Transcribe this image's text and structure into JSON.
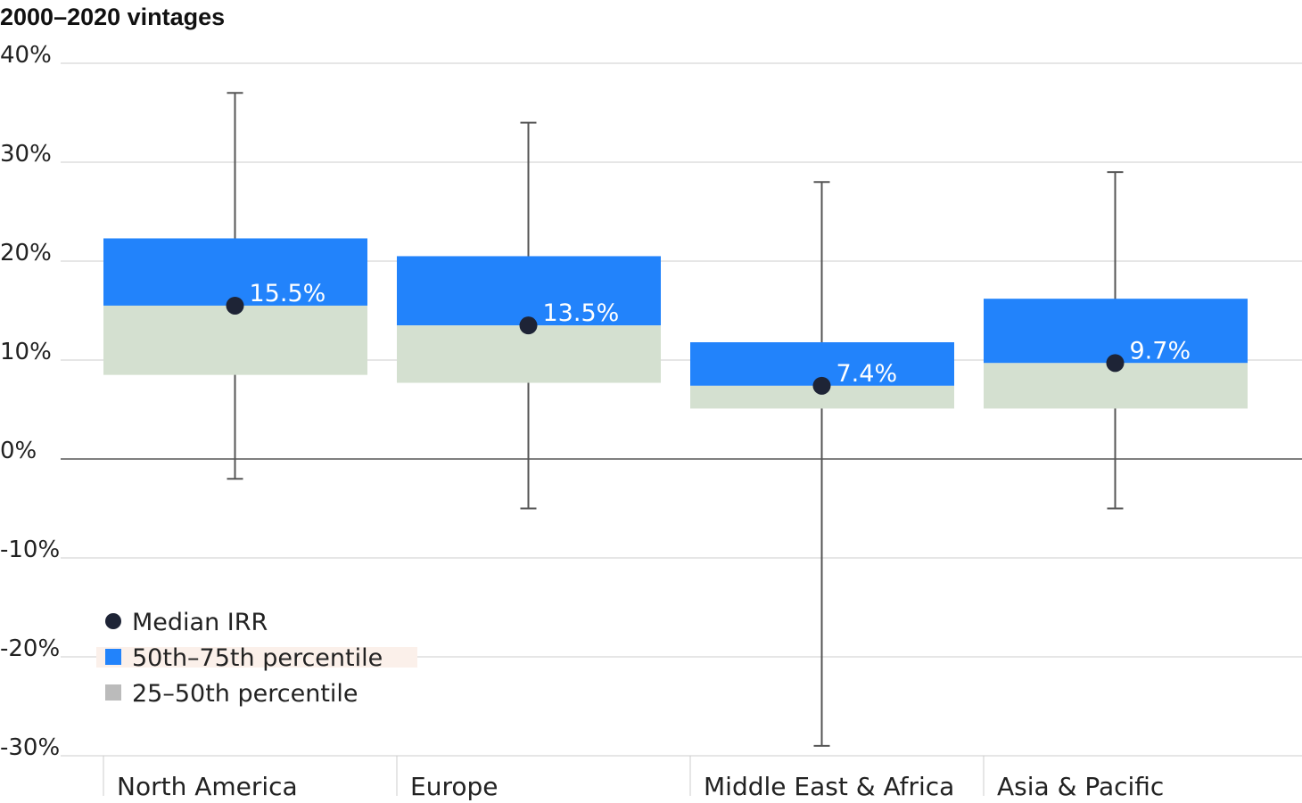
{
  "chart_data": {
    "type": "box",
    "title": "2000–2020 vintages",
    "xlabel": "",
    "ylabel": "",
    "ylim": [
      -30,
      40
    ],
    "yticks": [
      40,
      30,
      20,
      10,
      0,
      -10,
      -20,
      -30
    ],
    "ytick_labels": [
      "40%",
      "30%",
      "20%",
      "10%",
      "0%",
      "-10%",
      "-20%",
      "-30%"
    ],
    "grid": true,
    "categories": [
      "North America",
      "Europe",
      "Middle East & Africa",
      "Asia & Pacific"
    ],
    "whisker_low": [
      -2,
      -5,
      -29,
      -5
    ],
    "p25": [
      8.5,
      7.7,
      5.1,
      5.1
    ],
    "median": [
      15.5,
      13.5,
      7.4,
      9.7
    ],
    "p75": [
      22.3,
      20.5,
      11.8,
      16.2
    ],
    "whisker_high": [
      37,
      34,
      28,
      29
    ],
    "median_labels": [
      "15.5%",
      "13.5%",
      "7.4%",
      "9.7%"
    ],
    "legend": {
      "position": "bottom-left",
      "items": [
        {
          "label": "Median IRR",
          "marker": "dot"
        },
        {
          "label": "50th–75th percentile",
          "marker": "square"
        },
        {
          "label": "25–50th percentile",
          "marker": "square"
        }
      ]
    },
    "colors": {
      "upper_box": "#2283fb",
      "lower_box": "#d4e0d0",
      "median_dot": "#1e2436",
      "whisker": "#555555",
      "grid": "#cccccc",
      "zero_line": "#555555",
      "legend_lower_swatch": "#bbbbbb",
      "legend_highlight": "#fbf0ea"
    }
  }
}
